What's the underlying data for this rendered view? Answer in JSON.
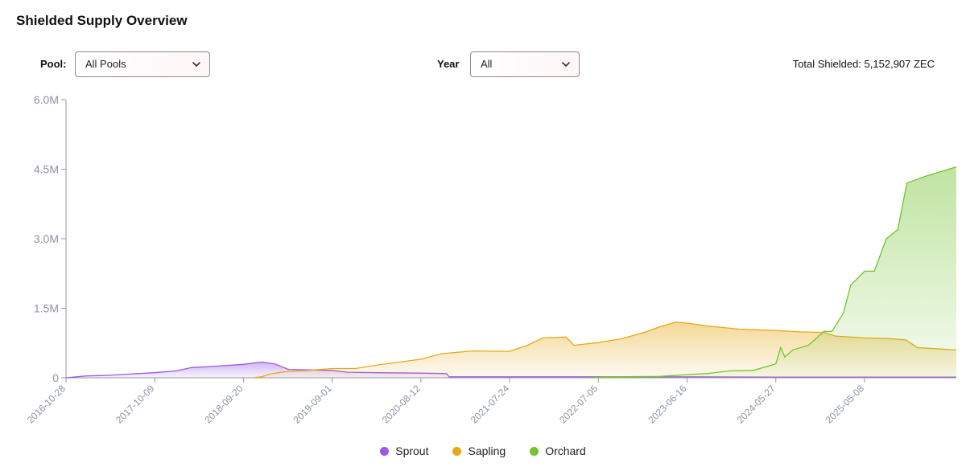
{
  "page": {
    "title": "Shielded Supply Overview"
  },
  "controls": {
    "pool_label": "Pool:",
    "pool_value": "All Pools",
    "year_label": "Year",
    "year_value": "All",
    "total_label": "Total Shielded:",
    "total_value": "5,152,907 ZEC"
  },
  "legend": [
    {
      "name": "Sprout",
      "color": "#9b59e6"
    },
    {
      "name": "Sapling",
      "color": "#e6a817"
    },
    {
      "name": "Orchard",
      "color": "#72c32c"
    }
  ],
  "chart_data": {
    "type": "area",
    "title": "",
    "xlabel": "",
    "ylabel": "",
    "x_tick_labels": [
      "2016-10-28",
      "2017-10-09",
      "2018-09-20",
      "2019-09-01",
      "2020-08-12",
      "2021-07-24",
      "2022-07-05",
      "2023-06-16",
      "2024-05-27",
      "2025-05-08"
    ],
    "y_tick_labels": [
      "0",
      "1.5M",
      "3.0M",
      "4.5M",
      "6.0M"
    ],
    "ylim": [
      0,
      6000000
    ],
    "xlim": [
      "2016-10-28",
      "2026-05-01"
    ],
    "grid": false,
    "legend_position": "bottom",
    "series": [
      {
        "name": "Sprout",
        "color": "#9b59e6",
        "points": [
          [
            "2016-10-28",
            0
          ],
          [
            "2017-01-15",
            40000
          ],
          [
            "2017-04-01",
            50000
          ],
          [
            "2017-07-01",
            80000
          ],
          [
            "2017-10-09",
            110000
          ],
          [
            "2018-01-01",
            150000
          ],
          [
            "2018-03-01",
            220000
          ],
          [
            "2018-06-01",
            250000
          ],
          [
            "2018-09-20",
            290000
          ],
          [
            "2018-12-01",
            340000
          ],
          [
            "2019-01-20",
            300000
          ],
          [
            "2019-03-15",
            180000
          ],
          [
            "2019-06-01",
            170000
          ],
          [
            "2019-09-01",
            160000
          ],
          [
            "2019-11-01",
            120000
          ],
          [
            "2020-03-01",
            110000
          ],
          [
            "2020-08-12",
            100000
          ],
          [
            "2020-11-20",
            90000
          ],
          [
            "2020-11-30",
            20000
          ],
          [
            "2021-07-24",
            20000
          ],
          [
            "2022-07-05",
            20000
          ],
          [
            "2023-06-16",
            20000
          ],
          [
            "2024-05-27",
            15000
          ],
          [
            "2025-05-08",
            15000
          ],
          [
            "2026-05-01",
            15000
          ]
        ]
      },
      {
        "name": "Sapling",
        "color": "#e6a817",
        "points": [
          [
            "2018-10-28",
            0
          ],
          [
            "2018-11-30",
            20000
          ],
          [
            "2019-01-01",
            80000
          ],
          [
            "2019-03-01",
            130000
          ],
          [
            "2019-06-01",
            160000
          ],
          [
            "2019-09-01",
            200000
          ],
          [
            "2019-12-01",
            200000
          ],
          [
            "2020-03-01",
            280000
          ],
          [
            "2020-08-12",
            400000
          ],
          [
            "2020-11-01",
            520000
          ],
          [
            "2021-03-01",
            580000
          ],
          [
            "2021-07-24",
            570000
          ],
          [
            "2021-10-01",
            700000
          ],
          [
            "2021-12-01",
            860000
          ],
          [
            "2022-03-01",
            880000
          ],
          [
            "2022-04-01",
            700000
          ],
          [
            "2022-07-05",
            760000
          ],
          [
            "2022-10-01",
            840000
          ],
          [
            "2023-01-01",
            980000
          ],
          [
            "2023-03-01",
            1100000
          ],
          [
            "2023-05-01",
            1200000
          ],
          [
            "2023-06-16",
            1180000
          ],
          [
            "2023-09-01",
            1120000
          ],
          [
            "2024-01-01",
            1050000
          ],
          [
            "2024-05-27",
            1020000
          ],
          [
            "2024-09-01",
            990000
          ],
          [
            "2024-12-01",
            980000
          ],
          [
            "2025-01-15",
            900000
          ],
          [
            "2025-05-08",
            860000
          ],
          [
            "2025-08-01",
            850000
          ],
          [
            "2025-10-15",
            820000
          ],
          [
            "2025-12-01",
            650000
          ],
          [
            "2026-05-01",
            600000
          ]
        ]
      },
      {
        "name": "Orchard",
        "color": "#72c32c",
        "points": [
          [
            "2022-05-31",
            0
          ],
          [
            "2022-09-01",
            20000
          ],
          [
            "2023-03-01",
            30000
          ],
          [
            "2023-06-16",
            70000
          ],
          [
            "2023-09-01",
            90000
          ],
          [
            "2023-12-01",
            150000
          ],
          [
            "2024-03-01",
            160000
          ],
          [
            "2024-05-27",
            300000
          ],
          [
            "2024-06-15",
            650000
          ],
          [
            "2024-07-01",
            450000
          ],
          [
            "2024-08-01",
            600000
          ],
          [
            "2024-10-01",
            700000
          ],
          [
            "2024-12-01",
            1000000
          ],
          [
            "2025-01-01",
            1000000
          ],
          [
            "2025-02-15",
            1400000
          ],
          [
            "2025-03-15",
            2000000
          ],
          [
            "2025-05-08",
            2300000
          ],
          [
            "2025-06-15",
            2300000
          ],
          [
            "2025-08-01",
            3000000
          ],
          [
            "2025-09-15",
            3200000
          ],
          [
            "2025-10-20",
            4200000
          ],
          [
            "2026-01-01",
            4350000
          ],
          [
            "2026-05-01",
            4550000
          ]
        ]
      }
    ]
  }
}
